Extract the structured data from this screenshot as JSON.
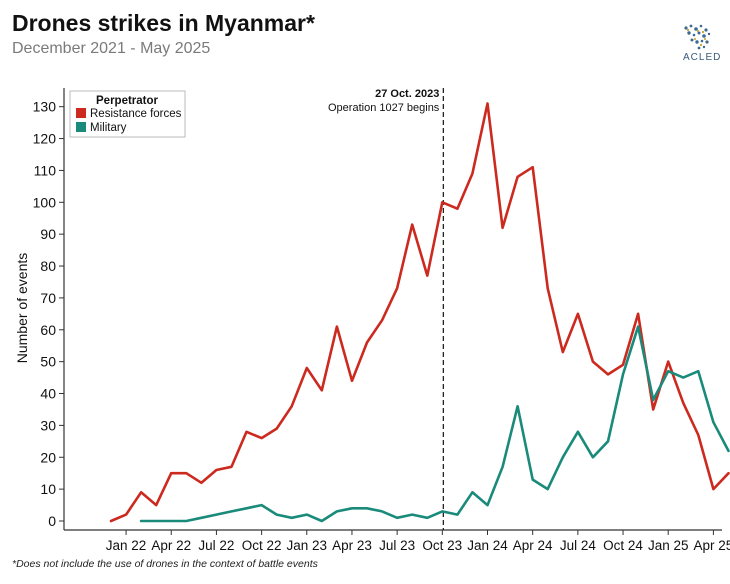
{
  "header": {
    "title": "Drones strikes in Myanmar*",
    "subtitle": "December 2021 - May 2025"
  },
  "logo": {
    "text": "ACLED"
  },
  "footnote": "*Does not include the use of drones in the context of battle events",
  "colors": {
    "resistance": "#cc2a1f",
    "military": "#1a8a7a",
    "axis": "#333333"
  },
  "chart_data": {
    "type": "line",
    "ylabel": "Number of events",
    "xlabel": "",
    "ylim": [
      0,
      138
    ],
    "yticks": [
      0,
      10,
      20,
      30,
      40,
      50,
      60,
      70,
      80,
      90,
      100,
      110,
      120,
      130
    ],
    "xticks": [
      "Jan 22",
      "Apr 22",
      "Jul 22",
      "Oct 22",
      "Jan 23",
      "Apr 23",
      "Jul 23",
      "Oct 23",
      "Jan 24",
      "Apr 24",
      "Jul 24",
      "Oct 24",
      "Jan 25",
      "Apr 25"
    ],
    "x": [
      "Dec 21",
      "Jan 22",
      "Feb 22",
      "Mar 22",
      "Apr 22",
      "May 22",
      "Jun 22",
      "Jul 22",
      "Aug 22",
      "Sep 22",
      "Oct 22",
      "Nov 22",
      "Dec 22",
      "Jan 23",
      "Feb 23",
      "Mar 23",
      "Apr 23",
      "May 23",
      "Jun 23",
      "Jul 23",
      "Aug 23",
      "Sep 23",
      "Oct 23",
      "Nov 23",
      "Dec 23",
      "Jan 24",
      "Feb 24",
      "Mar 24",
      "Apr 24",
      "May 24",
      "Jun 24",
      "Jul 24",
      "Aug 24",
      "Sep 24",
      "Oct 24",
      "Nov 24",
      "Dec 24",
      "Jan 25",
      "Feb 25",
      "Mar 25",
      "Apr 25",
      "May 25"
    ],
    "legend_title": "Perpetrator",
    "legend_position": "top-left",
    "series": [
      {
        "name": "Resistance forces",
        "values": [
          0,
          2,
          9,
          5,
          15,
          15,
          12,
          16,
          17,
          28,
          26,
          29,
          36,
          48,
          41,
          61,
          44,
          56,
          63,
          73,
          93,
          77,
          100,
          98,
          109,
          131,
          92,
          108,
          111,
          73,
          53,
          65,
          50,
          46,
          49,
          65,
          35,
          50,
          37,
          27,
          10,
          15
        ]
      },
      {
        "name": "Military",
        "values": [
          null,
          null,
          0,
          0,
          0,
          0,
          1,
          2,
          3,
          4,
          5,
          2,
          1,
          2,
          0,
          3,
          4,
          4,
          3,
          1,
          2,
          1,
          3,
          2,
          9,
          5,
          17,
          36,
          13,
          10,
          20,
          28,
          20,
          25,
          46,
          61,
          38,
          47,
          45,
          47,
          31,
          22
        ]
      }
    ],
    "annotation": {
      "date": "27 Oct. 2023",
      "text": "Operation 1027 begins",
      "index": 22
    }
  }
}
